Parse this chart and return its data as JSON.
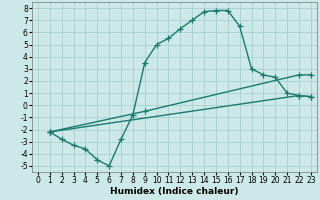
{
  "xlabel": "Humidex (Indice chaleur)",
  "xlim": [
    -0.5,
    23.5
  ],
  "ylim": [
    -5.5,
    8.5
  ],
  "xticks": [
    0,
    1,
    2,
    3,
    4,
    5,
    6,
    7,
    8,
    9,
    10,
    11,
    12,
    13,
    14,
    15,
    16,
    17,
    18,
    19,
    20,
    21,
    22,
    23
  ],
  "yticks": [
    -5,
    -4,
    -3,
    -2,
    -1,
    0,
    1,
    2,
    3,
    4,
    5,
    6,
    7,
    8
  ],
  "bg_color": "#cce8e8",
  "grid_color": "#a8d0d0",
  "line_color": "#1a7a6e",
  "lines": [
    {
      "x": [
        1,
        2,
        3,
        4,
        5,
        6,
        7,
        8,
        9,
        10,
        11,
        12,
        13,
        14,
        15,
        16,
        17,
        18,
        19,
        20,
        21,
        22,
        23
      ],
      "y": [
        -2.2,
        -2.8,
        -3.3,
        -3.6,
        -4.5,
        -5.0,
        -2.8,
        -0.8,
        3.5,
        5.0,
        5.5,
        6.3,
        7.0,
        7.7,
        7.8,
        7.8,
        6.5,
        3.0,
        2.5,
        2.3,
        1.0,
        0.8,
        0.7
      ]
    },
    {
      "x": [
        1,
        22,
        23
      ],
      "y": [
        -2.2,
        0.8,
        0.7
      ]
    },
    {
      "x": [
        1,
        9,
        22,
        23
      ],
      "y": [
        -2.2,
        -0.5,
        2.5,
        2.5
      ]
    }
  ],
  "marker": "+",
  "markersize": 4,
  "linewidth": 1.0,
  "tick_fontsize": 5.5,
  "xlabel_fontsize": 6.5
}
